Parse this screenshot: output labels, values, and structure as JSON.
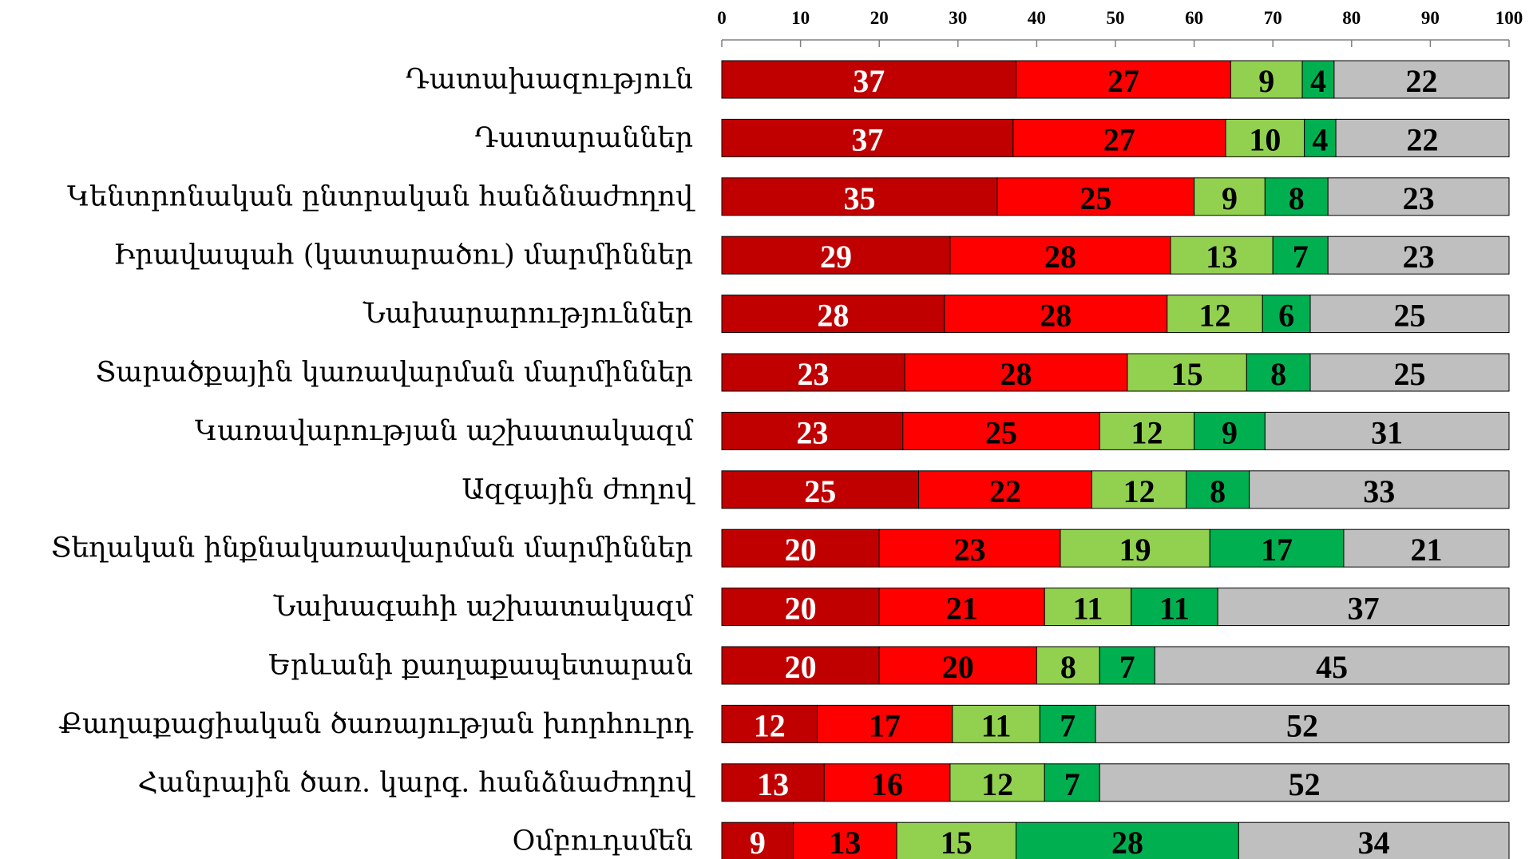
{
  "chart_data": {
    "type": "bar",
    "orientation": "horizontal",
    "stacked": true,
    "xlim": [
      0,
      100
    ],
    "x_ticks": [
      0,
      10,
      20,
      30,
      40,
      50,
      60,
      70,
      80,
      90,
      100
    ],
    "x_axis_position": "top",
    "grid": false,
    "legend": "none",
    "categories": [
      "Դատախազություն",
      "Դատարաններ",
      "Կենտրոնական ընտրական հանձնաժողով",
      "Իրավապահ (կատարածու) մարմիններ",
      "Նախարարություններ",
      "Տարածքային կառավարման մարմիններ",
      "Կառավարության աշխատակազմ",
      "Ազգային ժողով",
      "Տեղական ինքնակառավարման մարմիններ",
      "Նախագահի աշխատակազմ",
      "Երևանի քաղաքապետարան",
      "Քաղաքացիական ծառայության խորհուրդ",
      "Հանրային ծառ. կարգ. հանձնաժողով",
      "Օմբուդսմեն"
    ],
    "series": [
      {
        "values": [
          37,
          37,
          35,
          29,
          28,
          23,
          23,
          25,
          20,
          20,
          20,
          12,
          13,
          9
        ],
        "color": "#C00000",
        "label_color": "#FFFFFF"
      },
      {
        "values": [
          27,
          27,
          25,
          28,
          28,
          28,
          25,
          22,
          23,
          21,
          20,
          17,
          16,
          13
        ],
        "color": "#FF0000",
        "label_color": "#000000"
      },
      {
        "values": [
          9,
          10,
          9,
          13,
          12,
          15,
          12,
          12,
          19,
          11,
          8,
          11,
          12,
          15
        ],
        "color": "#92D050",
        "label_color": "#000000"
      },
      {
        "values": [
          4,
          4,
          8,
          7,
          6,
          8,
          9,
          8,
          17,
          11,
          7,
          7,
          7,
          28
        ],
        "color": "#00B050",
        "label_color": "#000000"
      },
      {
        "values": [
          22,
          22,
          23,
          23,
          25,
          25,
          31,
          33,
          21,
          37,
          45,
          52,
          52,
          34
        ],
        "color": "#BFBFBF",
        "label_color": "#000000"
      }
    ]
  }
}
